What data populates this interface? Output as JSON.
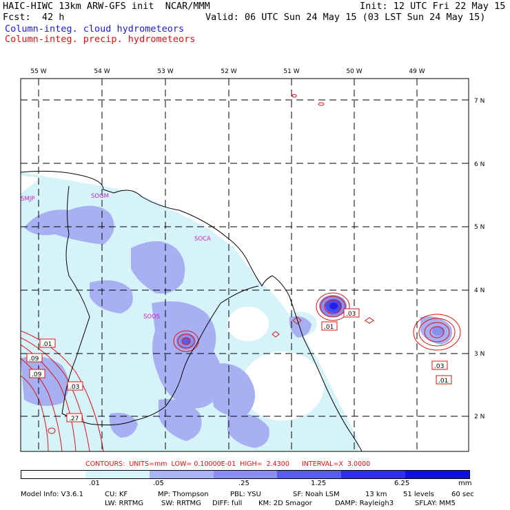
{
  "header": {
    "title_left": "HAIC-HIWC 13km ARW-GFS init  NCAR/MMM",
    "init": "Init: 12 UTC Fri 22 May 15",
    "fcst": "Fcst:  42 h",
    "valid": "Valid: 06 UTC Sun 24 May 15 (03 LST Sun 24 May 15)",
    "field_cloud": "Column-integ. cloud hydrometeors",
    "field_precip": "Column-integ. precip. hydrometeors"
  },
  "map": {
    "lon_labels": [
      "55 W",
      "54 W",
      "53 W",
      "52 W",
      "51 W",
      "50 W",
      "49 W"
    ],
    "lat_labels": [
      "7 N",
      "6 N",
      "5 N",
      "4 N",
      "3 N",
      "2 N"
    ],
    "stations": [
      "SMJP",
      "SOGM",
      "SOCA",
      "SOOS"
    ],
    "contour_labels": [
      ".01",
      ".03",
      ".01",
      ".09",
      ".09",
      ".03",
      ".27",
      ".03",
      ".01"
    ]
  },
  "contour_info": "CONTOURS:  UNITS=mm  LOW= 0.10000E-01  HIGH=  2.4300      INTERVAL=X  3.0000",
  "colorbar": {
    "ticks": [
      ".01",
      ".05",
      ".25",
      "1.25",
      "6.25"
    ],
    "unit": "mm",
    "colors": [
      "#ffffff",
      "#d8f4f8",
      "#aab4f4",
      "#8a8ef0",
      "#5a5cee",
      "#3030ea",
      "#1010e6"
    ]
  },
  "model_info": {
    "line1": [
      "Model Info: V3.6.1",
      "CU: KF",
      "MP: Thompson",
      "PBL: YSU",
      "SF: Noah LSM",
      "13 km",
      "51 levels",
      "60 sec"
    ],
    "line2": [
      "LW: RRTMG",
      "SW: RRTMG",
      "DIFF: full",
      "KM: 2D Smagor",
      "DAMP: Rayleigh3",
      "SFLAY: MM5"
    ]
  }
}
